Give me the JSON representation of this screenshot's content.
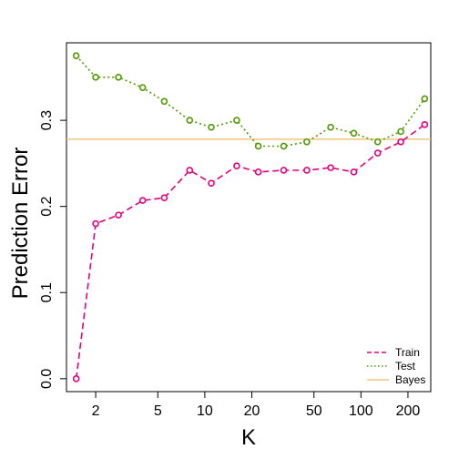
{
  "chart_data": {
    "type": "line",
    "title": "",
    "xlabel": "K",
    "ylabel": "Prediction Error",
    "x_scale": "log",
    "xlim": [
      1.3,
      280
    ],
    "ylim": [
      -0.015,
      0.39
    ],
    "x_ticks": [
      2,
      5,
      10,
      20,
      50,
      100,
      200
    ],
    "x_tick_labels": [
      "2",
      "5",
      "10",
      "20",
      "50",
      "100",
      "200"
    ],
    "y_ticks": [
      0,
      0.1,
      0.2,
      0.3
    ],
    "y_tick_labels": [
      "0.0",
      "0.1",
      "0.2",
      "0.3"
    ],
    "grid": false,
    "legend_position": "bottom-right",
    "x": [
      1.5,
      2,
      2.8,
      4,
      5.5,
      8,
      11,
      16,
      22,
      32,
      45,
      64,
      90,
      128,
      180,
      256
    ],
    "series": [
      {
        "name": "Train",
        "color": "#e6007e",
        "line_style": "dashed",
        "values": [
          0.0,
          0.18,
          0.19,
          0.207,
          0.21,
          0.242,
          0.227,
          0.247,
          0.24,
          0.242,
          0.242,
          0.245,
          0.24,
          0.262,
          0.275,
          0.295
        ]
      },
      {
        "name": "Test",
        "color": "#4d9a00",
        "line_style": "dotted",
        "values": [
          0.375,
          0.35,
          0.35,
          0.338,
          0.322,
          0.3,
          0.292,
          0.3,
          0.27,
          0.27,
          0.275,
          0.292,
          0.285,
          0.275,
          0.287,
          0.325
        ]
      }
    ],
    "reference_lines": [
      {
        "name": "Bayes",
        "color": "#f2c57c",
        "y": 0.278
      }
    ]
  }
}
